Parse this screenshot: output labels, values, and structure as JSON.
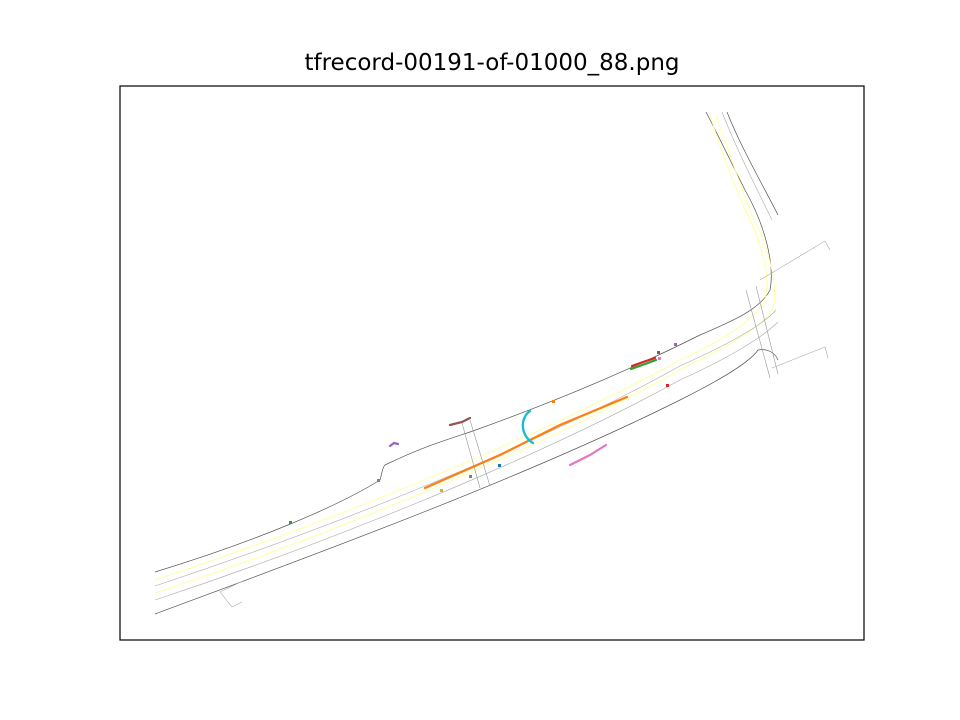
{
  "figure": {
    "title": "tfrecord-00191-of-01000_88.png"
  },
  "colors": {
    "road_edge": "#555555",
    "lane_center": "#ffff99",
    "lane_boundary": "#aaaaaa",
    "frame": "#000000",
    "agent_palette": [
      "#1f77b4",
      "#ff7f0e",
      "#2ca02c",
      "#d62728",
      "#9467bd",
      "#8c564b",
      "#e377c2",
      "#7f7f7f",
      "#bcbd22",
      "#17becf"
    ]
  }
}
